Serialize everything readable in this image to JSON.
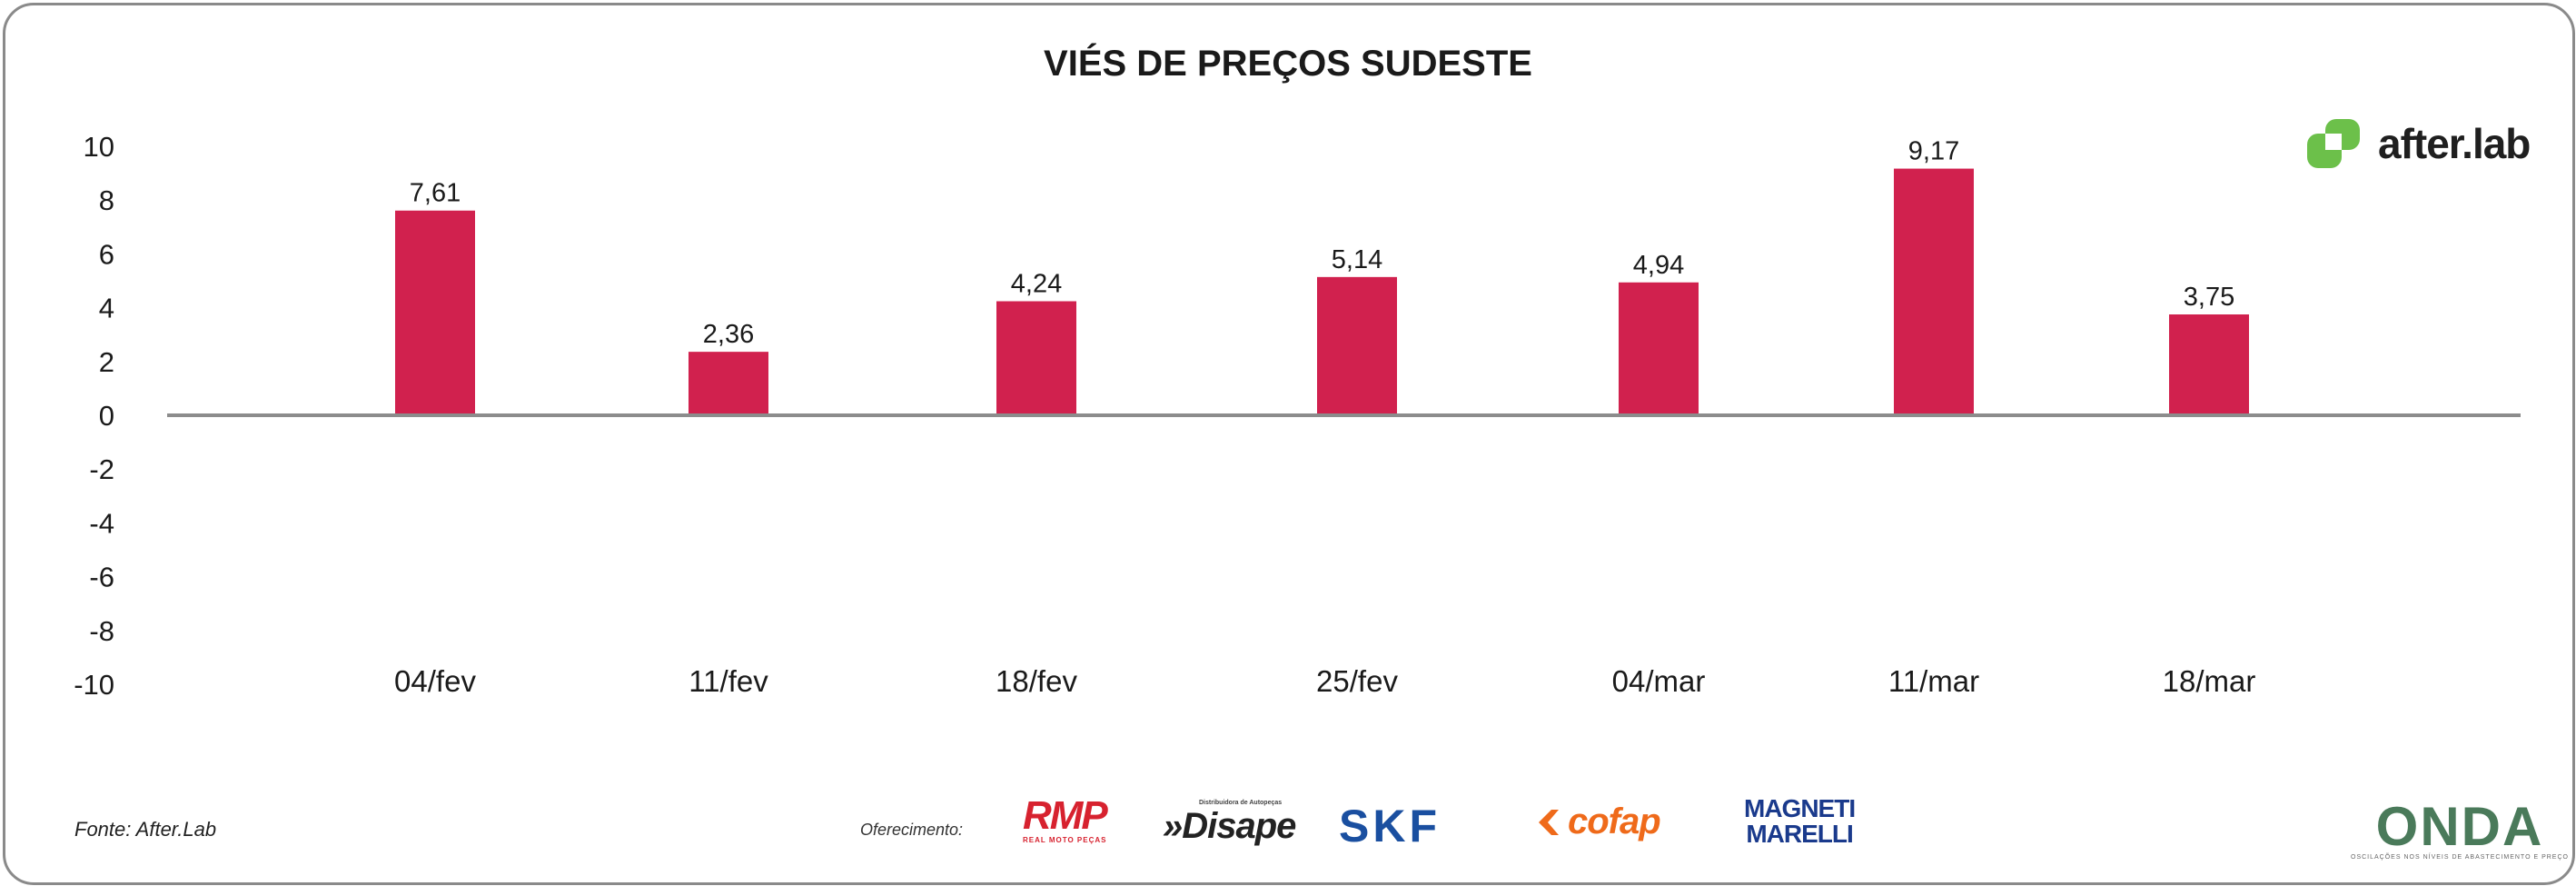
{
  "chart_data": {
    "type": "bar",
    "title": "VIÉS DE PREÇOS SUDESTE",
    "categories": [
      "04/fev",
      "11/fev",
      "18/fev",
      "25/fev",
      "04/mar",
      "11/mar",
      "18/mar"
    ],
    "values": [
      7.61,
      2.36,
      4.24,
      5.14,
      4.94,
      9.17,
      3.75
    ],
    "value_labels": [
      "7,61",
      "2,36",
      "4,24",
      "5,14",
      "4,94",
      "9,17",
      "3,75"
    ],
    "yticks": [
      10,
      8,
      6,
      4,
      2,
      0,
      -2,
      -4,
      -6,
      -8,
      -10
    ],
    "ylim": [
      -10,
      10
    ],
    "xlabel": "",
    "ylabel": "",
    "grid": false,
    "bar_color": "#d1214e"
  },
  "footer": {
    "source": "Fonte: After.Lab",
    "sponsor_label": "Oferecimento:"
  },
  "logos": {
    "afterlab": {
      "name": "after.lab",
      "color": "#6cc04a"
    },
    "rmp": {
      "name": "RMP",
      "tagline": "REAL MOTO PEÇAS"
    },
    "disape": {
      "name": "»Disape",
      "tagline": "Distribuidora de Autopeças"
    },
    "skf": {
      "name": "SKF"
    },
    "cofap": {
      "name": "cofap"
    },
    "magneti": {
      "line1": "MAGNETI",
      "line2": "MARELLI"
    },
    "onda": {
      "name": "ONDA",
      "tagline": "OSCILAÇÕES NOS NÍVEIS DE ABASTECIMENTO E PREÇO"
    }
  }
}
